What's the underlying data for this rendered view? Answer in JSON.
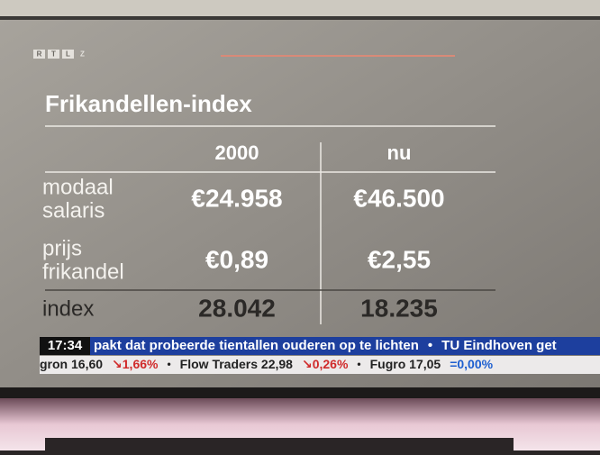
{
  "logo": {
    "letters": [
      "R",
      "T",
      "L",
      "Z"
    ]
  },
  "title": "Frikandellen-index",
  "table": {
    "headers": [
      "2000",
      "nu"
    ],
    "rows": [
      {
        "label": [
          "modaal",
          "salaris"
        ],
        "cells": [
          "€24.958",
          "€46.500"
        ]
      },
      {
        "label": [
          "prijs",
          "frikandel"
        ],
        "cells": [
          "€0,89",
          "€2,55"
        ]
      },
      {
        "label": [
          "index"
        ],
        "cells": [
          "28.042",
          "18.235"
        ]
      }
    ]
  },
  "ticker": {
    "time": "17:34",
    "headline": "pakt dat probeerde tientallen ouderen op te lichten",
    "separator": "•",
    "next_headline": "TU Eindhoven get",
    "stocks": [
      {
        "name": "gron 16,60",
        "change": "↘1,66%"
      },
      {
        "name": "Flow Traders 22,98",
        "change": "↘0,26%"
      },
      {
        "name": "Fugro 17,05",
        "change": "=0,00%"
      }
    ]
  }
}
